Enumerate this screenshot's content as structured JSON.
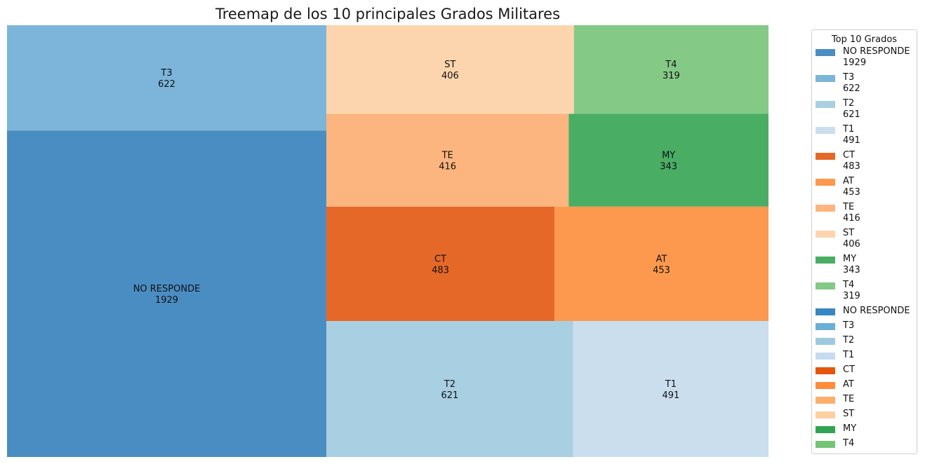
{
  "chart_data": {
    "type": "treemap",
    "title": "Treemap de los 10 principales Grados Militares",
    "tiles": [
      {
        "label": "NO RESPONDE",
        "value": 1929,
        "color": "#4a8dc3"
      },
      {
        "label": "T3",
        "value": 622,
        "color": "#7cb5d9"
      },
      {
        "label": "T2",
        "value": 621,
        "color": "#a8cfe2"
      },
      {
        "label": "T1",
        "value": 491,
        "color": "#cbdeee"
      },
      {
        "label": "CT",
        "value": 483,
        "color": "#e66828"
      },
      {
        "label": "AT",
        "value": 453,
        "color": "#fc994e"
      },
      {
        "label": "TE",
        "value": 416,
        "color": "#fcb57e"
      },
      {
        "label": "ST",
        "value": 406,
        "color": "#fcd5ae"
      },
      {
        "label": "MY",
        "value": 343,
        "color": "#49ad64"
      },
      {
        "label": "T4",
        "value": 319,
        "color": "#84c985"
      }
    ],
    "legend": {
      "title": "Top 10 Grados",
      "placement": "right",
      "entries": [
        {
          "text": "NO RESPONDE\n1929",
          "color": "#4a8dc3"
        },
        {
          "text": "T3\n622",
          "color": "#7cb5d9"
        },
        {
          "text": "T2\n621",
          "color": "#a8cfe2"
        },
        {
          "text": "T1\n491",
          "color": "#cbdeee"
        },
        {
          "text": "CT\n483",
          "color": "#e66828"
        },
        {
          "text": "AT\n453",
          "color": "#fc994e"
        },
        {
          "text": "TE\n416",
          "color": "#fcb57e"
        },
        {
          "text": "ST\n406",
          "color": "#fcd5ae"
        },
        {
          "text": "MY\n343",
          "color": "#49ad64"
        },
        {
          "text": "T4\n319",
          "color": "#84c985"
        },
        {
          "text": "NO RESPONDE",
          "color": "#3787c0"
        },
        {
          "text": "T3",
          "color": "#6baed6"
        },
        {
          "text": "T2",
          "color": "#9ecae1"
        },
        {
          "text": "T1",
          "color": "#c6dbef"
        },
        {
          "text": "CT",
          "color": "#e6550d"
        },
        {
          "text": "AT",
          "color": "#fd8d3c"
        },
        {
          "text": "TE",
          "color": "#fdae6b"
        },
        {
          "text": "ST",
          "color": "#fdd0a2"
        },
        {
          "text": "MY",
          "color": "#31a354"
        },
        {
          "text": "T4",
          "color": "#74c476"
        }
      ]
    }
  }
}
